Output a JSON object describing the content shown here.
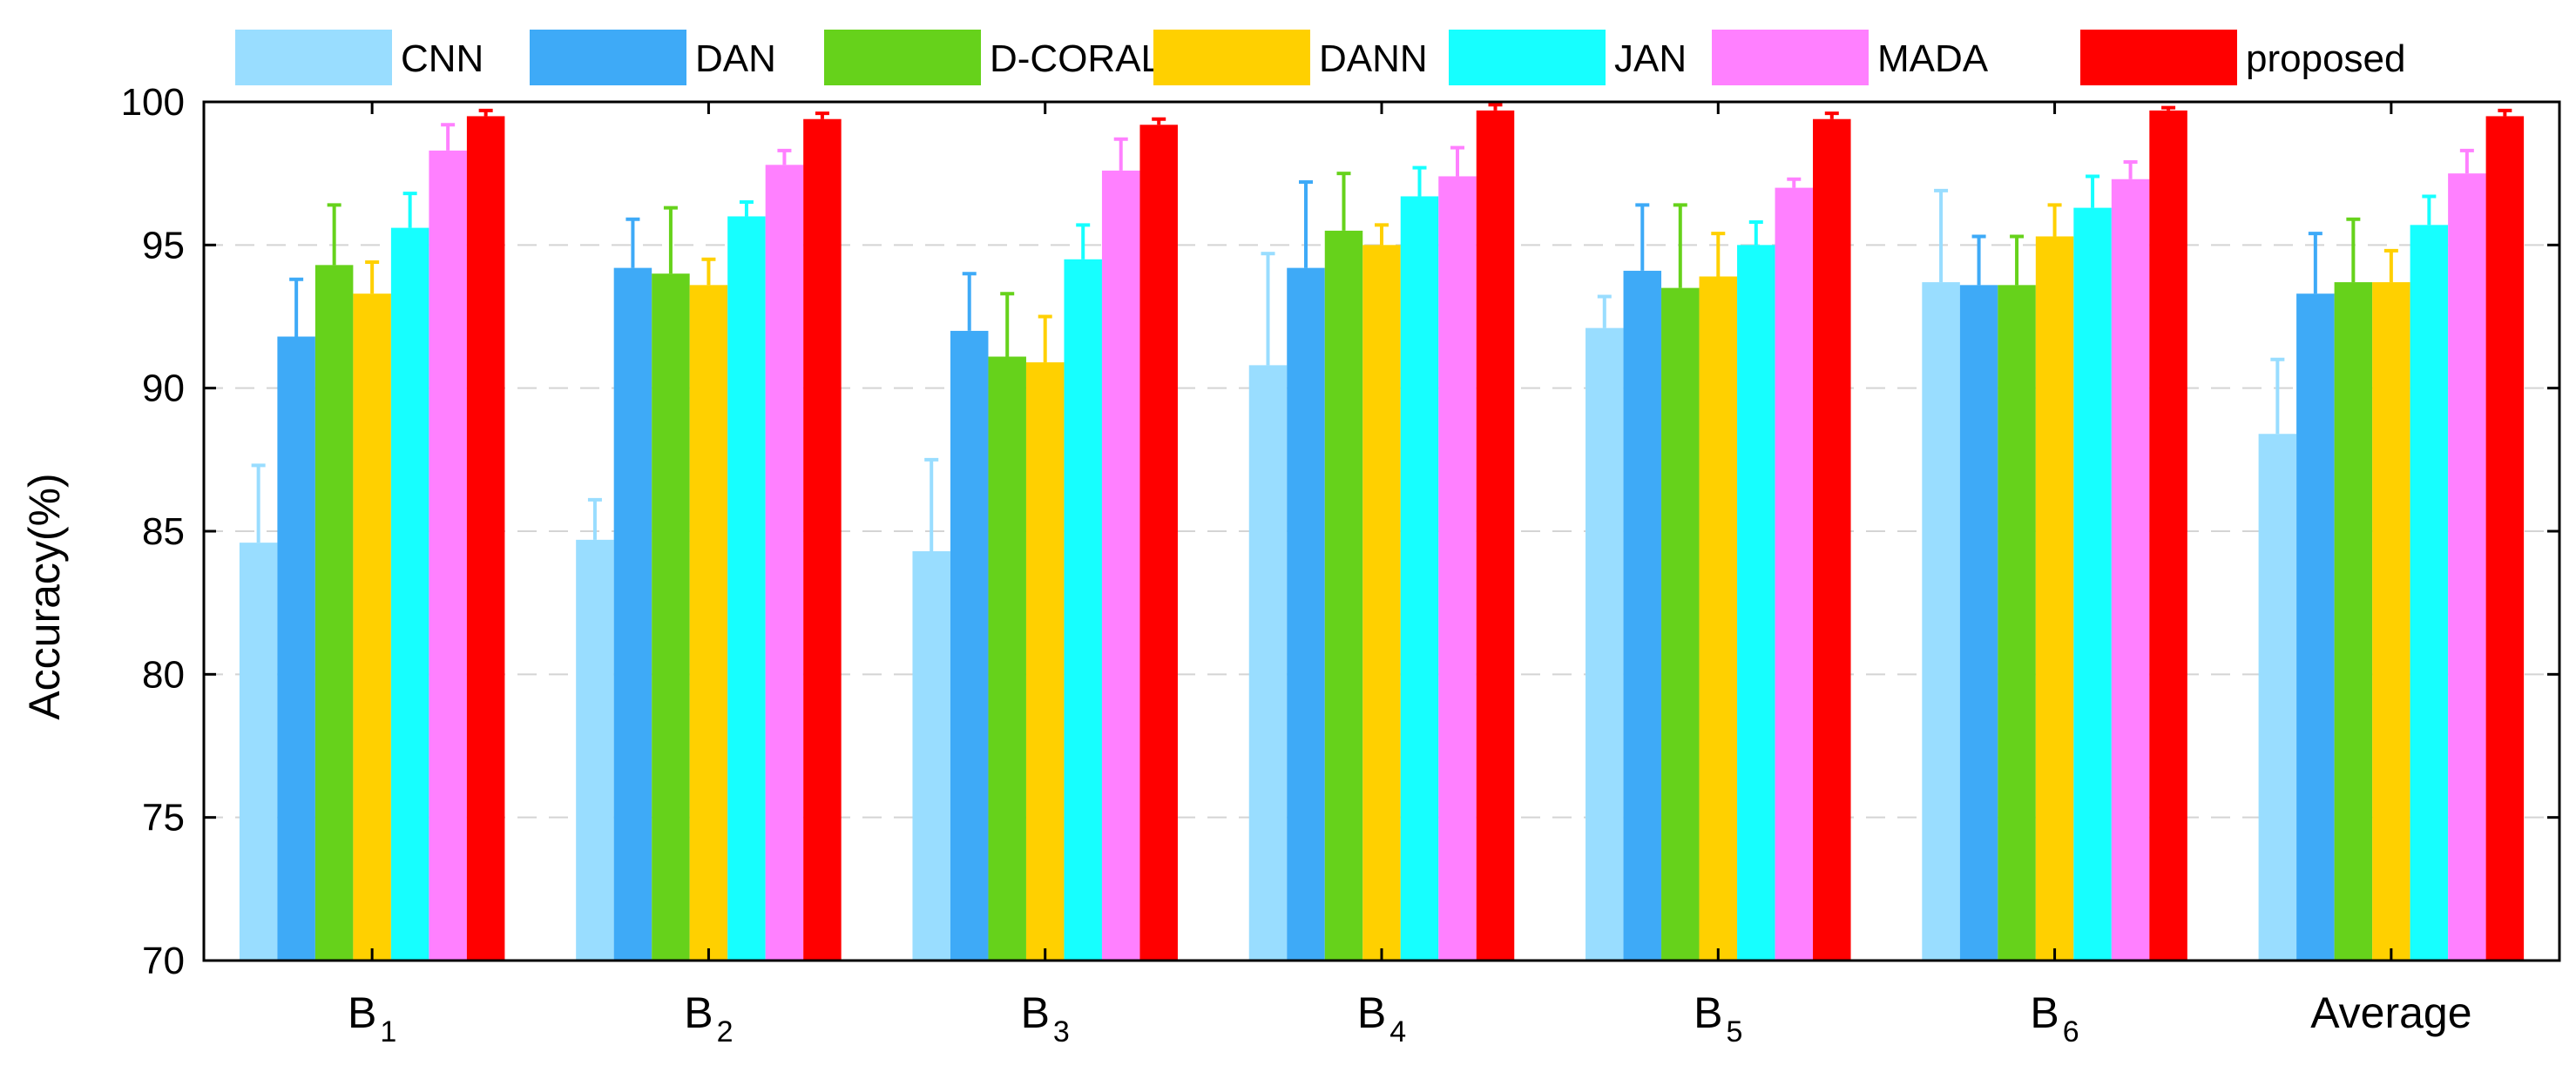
{
  "chart_data": {
    "type": "bar",
    "title": "",
    "xlabel": "",
    "ylabel": "Accuracy(%)",
    "ylim": [
      70,
      100
    ],
    "yticks": [
      70,
      75,
      80,
      85,
      90,
      95,
      100
    ],
    "grid": "horizontal-dashed",
    "legend_placement": "top",
    "categories": [
      {
        "main": "B",
        "sub": "1"
      },
      {
        "main": "B",
        "sub": "2"
      },
      {
        "main": "B",
        "sub": "3"
      },
      {
        "main": "B",
        "sub": "4"
      },
      {
        "main": "B",
        "sub": "5"
      },
      {
        "main": "B",
        "sub": "6"
      },
      {
        "main": "Average",
        "sub": ""
      }
    ],
    "series": [
      {
        "name": "CNN",
        "color": "#99DDFF",
        "values": [
          84.6,
          84.7,
          84.3,
          90.8,
          92.1,
          93.7,
          88.4
        ],
        "errors": [
          2.7,
          1.4,
          3.2,
          3.9,
          1.1,
          3.2,
          2.6
        ]
      },
      {
        "name": "DAN",
        "color": "#3EAAF7",
        "values": [
          91.8,
          94.2,
          92.0,
          94.2,
          94.1,
          93.6,
          93.3
        ],
        "errors": [
          2.0,
          1.7,
          2.0,
          3.0,
          2.3,
          1.7,
          2.1
        ]
      },
      {
        "name": "D-CORAL",
        "color": "#66D21B",
        "values": [
          94.3,
          94.0,
          91.1,
          95.5,
          93.5,
          93.6,
          93.7
        ],
        "errors": [
          2.1,
          2.3,
          2.2,
          2.0,
          2.9,
          1.7,
          2.2
        ]
      },
      {
        "name": "DANN",
        "color": "#FFD000",
        "values": [
          93.3,
          93.6,
          90.9,
          95.0,
          93.9,
          95.3,
          93.7
        ],
        "errors": [
          1.1,
          0.9,
          1.6,
          0.7,
          1.5,
          1.1,
          1.1
        ]
      },
      {
        "name": "JAN",
        "color": "#16FFFF",
        "values": [
          95.6,
          96.0,
          94.5,
          96.7,
          95.0,
          96.3,
          95.7
        ],
        "errors": [
          1.2,
          0.5,
          1.2,
          1.0,
          0.8,
          1.1,
          1.0
        ]
      },
      {
        "name": "MADA",
        "color": "#FF80FF",
        "values": [
          98.3,
          97.8,
          97.6,
          97.4,
          97.0,
          97.3,
          97.5
        ],
        "errors": [
          0.9,
          0.5,
          1.1,
          1.0,
          0.3,
          0.6,
          0.8
        ]
      },
      {
        "name": "proposed",
        "color": "#FF0000",
        "values": [
          99.5,
          99.4,
          99.2,
          99.7,
          99.4,
          99.7,
          99.5
        ],
        "errors": [
          0.2,
          0.2,
          0.2,
          0.2,
          0.2,
          0.1,
          0.2
        ]
      }
    ]
  }
}
